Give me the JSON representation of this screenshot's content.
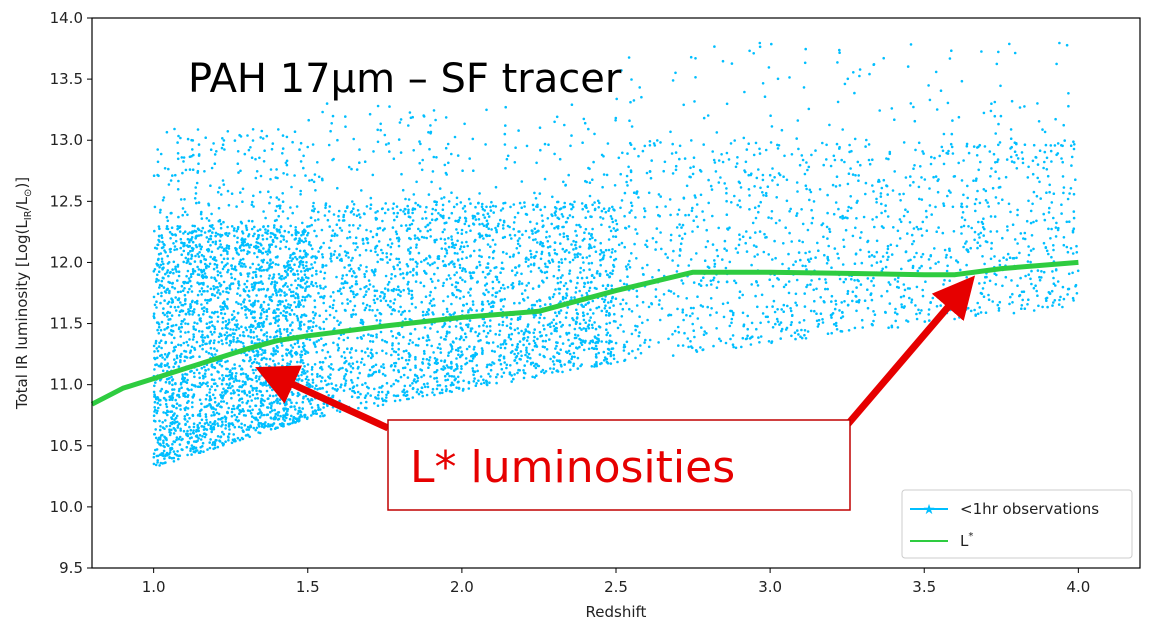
{
  "chart_data": {
    "type": "scatter",
    "title": "PAH 17µm – SF tracer",
    "xlabel": "Redshift",
    "ylabel": "Total IR luminosity [Log(L",
    "ylabel_sub": "IR",
    "ylabel_tail": "/L",
    "ylabel_sun": "⊙",
    "ylabel_end": ")]",
    "xlim": [
      0.8,
      4.2
    ],
    "ylim": [
      9.5,
      14.0
    ],
    "xticks": [
      "1.0",
      "1.5",
      "2.0",
      "2.5",
      "3.0",
      "3.5",
      "4.0"
    ],
    "xtick_values": [
      1.0,
      1.5,
      2.0,
      2.5,
      3.0,
      3.5,
      4.0
    ],
    "yticks": [
      "9.5",
      "10.0",
      "10.5",
      "11.0",
      "11.5",
      "12.0",
      "12.5",
      "13.0",
      "13.5",
      "14.0"
    ],
    "ytick_values": [
      9.5,
      10.0,
      10.5,
      11.0,
      11.5,
      12.0,
      12.5,
      13.0,
      13.5,
      14.0
    ],
    "grid": false,
    "legend_position": "bottom-right",
    "series": [
      {
        "name": "<1hr observations",
        "kind": "scatter",
        "color": "#00bfff",
        "segments": [
          {
            "x_range": [
              1.0,
              1.5
            ],
            "lower": [
              10.32,
              10.72
            ],
            "upper": 12.3,
            "density": "very high"
          },
          {
            "x_range": [
              1.5,
              2.5
            ],
            "lower": [
              10.72,
              11.18
            ],
            "upper": 12.5,
            "density": "high"
          },
          {
            "x_range": [
              2.5,
              4.0
            ],
            "lower": [
              11.18,
              11.65
            ],
            "upper": 13.0,
            "density": "medium"
          }
        ]
      },
      {
        "name": "L",
        "name_sup": "*",
        "kind": "line",
        "color": "#2ecc40",
        "x": [
          0.8,
          0.9,
          1.0,
          1.1,
          1.2,
          1.3,
          1.4,
          1.5,
          1.75,
          2.0,
          2.25,
          2.5,
          2.75,
          3.0,
          3.25,
          3.5,
          3.6,
          3.75,
          4.0
        ],
        "y": [
          10.84,
          10.97,
          11.05,
          11.13,
          11.21,
          11.29,
          11.36,
          11.4,
          11.48,
          11.55,
          11.6,
          11.77,
          11.92,
          11.92,
          11.91,
          11.9,
          11.9,
          11.95,
          12.0
        ]
      }
    ],
    "annotation": {
      "text": "L* luminosities",
      "color": "#e60000",
      "arrow_targets": [
        {
          "x": 1.35,
          "y": 11.12
        },
        {
          "x": 3.65,
          "y": 11.85
        }
      ]
    }
  }
}
